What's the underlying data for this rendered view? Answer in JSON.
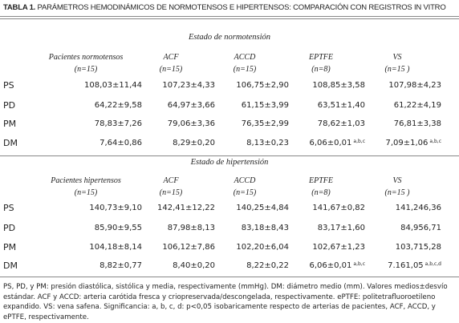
{
  "title": {
    "label": "TABLA 1.",
    "text": "PARÁMETROS HEMODINÁMICOS DE NORMOTENSOS E HIPERTENSOS: COMPARACIÓN CON REGISTROS IN VITRO"
  },
  "sections": [
    {
      "heading": "Estado de normotensión",
      "columns": [
        {
          "name": "Pacientes normotensos",
          "n": "(n=15)"
        },
        {
          "name": "ACF",
          "n": "(n=15)"
        },
        {
          "name": "ACCD",
          "n": "(n=15)"
        },
        {
          "name": "EPTFE",
          "n": "(n=8)"
        },
        {
          "name": "VS",
          "n": "(n=15 )"
        }
      ],
      "rows": [
        {
          "label": "PS",
          "cells": [
            {
              "value": "108,03±11,44"
            },
            {
              "value": "107,23±4,33"
            },
            {
              "value": "106,75±2,90"
            },
            {
              "value": "108,85±3,58"
            },
            {
              "value": "107,98±4,23"
            }
          ]
        },
        {
          "label": "PD",
          "cells": [
            {
              "value": "64,22±9,58"
            },
            {
              "value": "64,97±3,66"
            },
            {
              "value": "61,15±3,99"
            },
            {
              "value": "63,51±1,40"
            },
            {
              "value": "61,22±4,19"
            }
          ]
        },
        {
          "label": "PM",
          "cells": [
            {
              "value": "78,83±7,26"
            },
            {
              "value": "79,06±3,36"
            },
            {
              "value": "76,35±2,99"
            },
            {
              "value": "78,62±1,03"
            },
            {
              "value": "76,81±3,38"
            }
          ]
        },
        {
          "label": "DM",
          "cells": [
            {
              "value": "7,64±0,86"
            },
            {
              "value": "8,29±0,20"
            },
            {
              "value": "8,13±0,23"
            },
            {
              "value": "6,06±0,01",
              "note": "a,b,c"
            },
            {
              "value": "7,09±1,06",
              "note": "a,b,c"
            }
          ]
        }
      ]
    },
    {
      "heading": "Estado de hipertensión",
      "columns": [
        {
          "name": "Pacientes hipertensos",
          "n": "(n=15)"
        },
        {
          "name": "ACF",
          "n": "(n=15)"
        },
        {
          "name": "ACCD",
          "n": "(n=15)"
        },
        {
          "name": "EPTFE",
          "n": "(n=8)"
        },
        {
          "name": "VS",
          "n": "(n=15 )"
        }
      ],
      "rows": [
        {
          "label": "PS",
          "cells": [
            {
              "value": "140,73±9,10"
            },
            {
              "value": "142,41±12,22"
            },
            {
              "value": "140,25±4,84"
            },
            {
              "value": "141,67±0,82"
            },
            {
              "value": "141,246,36"
            }
          ]
        },
        {
          "label": "PD",
          "cells": [
            {
              "value": "85,90±9,55"
            },
            {
              "value": "87,98±8,13"
            },
            {
              "value": "83,18±8,43"
            },
            {
              "value": "83,17±1,60"
            },
            {
              "value": "84,956,71"
            }
          ]
        },
        {
          "label": "PM",
          "cells": [
            {
              "value": "104,18±8,14"
            },
            {
              "value": "106,12±7,86"
            },
            {
              "value": "102,20±6,04"
            },
            {
              "value": "102,67±1,23"
            },
            {
              "value": "103,715,28"
            }
          ]
        },
        {
          "label": "DM",
          "cells": [
            {
              "value": "8,82±0,77"
            },
            {
              "value": "8,40±0,20"
            },
            {
              "value": "8,22±0,22"
            },
            {
              "value": "6,06±0,01",
              "note": "a,b,c"
            },
            {
              "value": "7.161,05",
              "note": "a,b,c,d"
            }
          ]
        }
      ]
    }
  ],
  "footnote": "PS, PD, y PM: presión diastólica, sistólica y media, respectivamente (mmHg). DM: diámetro medio (mm). Valores medios±desvío estándar. ACF y ACCD: arteria carótida fresca y criopreservada/descongelada, respectivamente. ePTFE: politetrafluoroetileno expandido. VS: vena safena. Significancia: a, b, c, d: p<0,05 isobaricamente respecto de arterias de pacientes, ACF, ACCD, y ePTFE, respectivamente."
}
